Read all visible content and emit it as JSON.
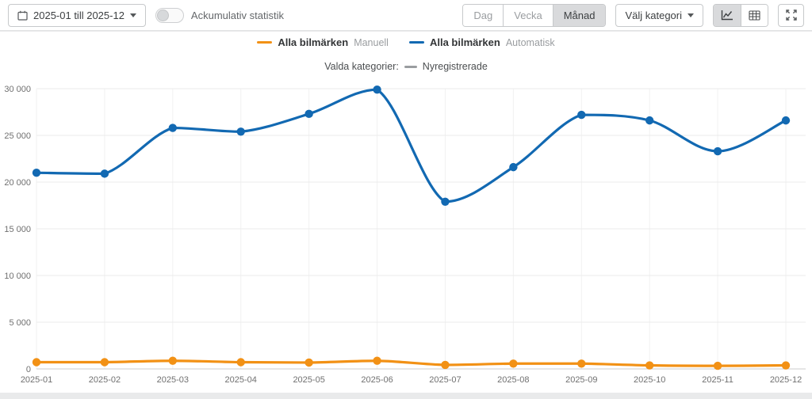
{
  "toolbar": {
    "date_range": "2025-01 till 2025-12",
    "cumulative_toggle": {
      "label": "Ackumulativ statistik",
      "state": "off"
    },
    "period_options": [
      {
        "label": "Dag",
        "active": false
      },
      {
        "label": "Vecka",
        "active": false
      },
      {
        "label": "Månad",
        "active": true
      }
    ],
    "category_button": "Välj kategori",
    "view_toggle": {
      "chart_active": true,
      "table_active": false
    }
  },
  "icons": {
    "calendar": "calendar-icon",
    "caret": "chevron-down-icon",
    "line_chart": "line-chart-icon",
    "table": "table-icon",
    "fullscreen": "fullscreen-expand-icon"
  },
  "legend": {
    "items": [
      {
        "label": "Alla bilmärken",
        "sublabel": "Manuell"
      },
      {
        "label": "Alla bilmärken",
        "sublabel": "Automatisk"
      }
    ]
  },
  "subtitle": {
    "prefix": "Valda kategorier:",
    "category": "Nyregistrerade",
    "swatch_color": "#9a9da0"
  },
  "chart_data": {
    "type": "line",
    "categories": [
      "2025-01",
      "2025-02",
      "2025-03",
      "2025-04",
      "2025-05",
      "2025-06",
      "2025-07",
      "2025-08",
      "2025-09",
      "2025-10",
      "2025-11",
      "2025-12"
    ],
    "series": [
      {
        "name": "Alla bilmärken Manuell",
        "color": "#f29115",
        "values": [
          720,
          720,
          870,
          720,
          680,
          870,
          430,
          570,
          570,
          380,
          330,
          380
        ]
      },
      {
        "name": "Alla bilmärken Automatisk",
        "color": "#1269b2",
        "values": [
          21000,
          20900,
          25800,
          25400,
          27300,
          29900,
          17900,
          21600,
          27200,
          26600,
          23300,
          26600
        ]
      }
    ],
    "title": "",
    "xlabel": "",
    "ylabel": "",
    "ylim": [
      0,
      30000
    ],
    "yticks": [
      0,
      5000,
      10000,
      15000,
      20000,
      25000,
      30000
    ],
    "grid": true,
    "legend_position": "top",
    "marker_radius": 5.2,
    "line_width": 3.2
  },
  "colors": {
    "page_background": "#e9eaeb",
    "card_background": "#ffffff",
    "grid_horizontal": "#ebebeb",
    "grid_vertical": "#f1f1f1",
    "axis_line": "#cccccc",
    "tick_text": "#707070",
    "active_button_bg": "#d9dadc"
  }
}
